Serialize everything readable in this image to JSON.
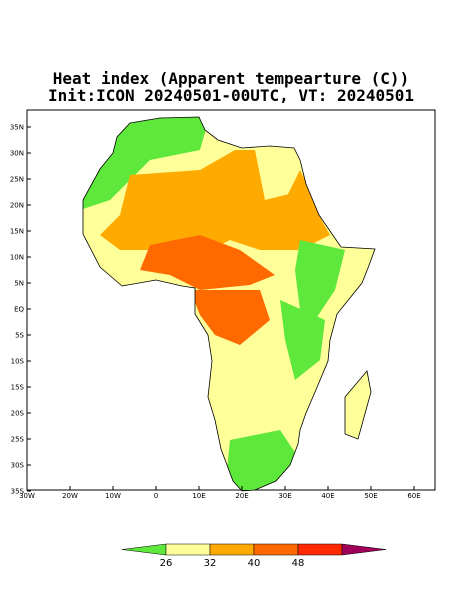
{
  "title": "Heat index (Apparent tempearture (C))",
  "subtitle": "Init:ICON 20240501-00UTC, VT: 20240501",
  "axes": {
    "lat_labels": [
      "35N",
      "30N",
      "25N",
      "20N",
      "15N",
      "10N",
      "5N",
      "EQ",
      "5S",
      "10S",
      "15S",
      "20S",
      "25S",
      "30S",
      "35S"
    ],
    "lon_labels": [
      "30W",
      "20W",
      "10W",
      "0",
      "10E",
      "20E",
      "30E",
      "40E",
      "50E",
      "60E"
    ]
  },
  "colorbar": {
    "labels": [
      "26",
      "32",
      "40",
      "48"
    ],
    "colors": [
      "#5fe83c",
      "#ffff99",
      "#ffaa00",
      "#ff6a00",
      "#ff2a00",
      "#a0005a"
    ]
  }
}
